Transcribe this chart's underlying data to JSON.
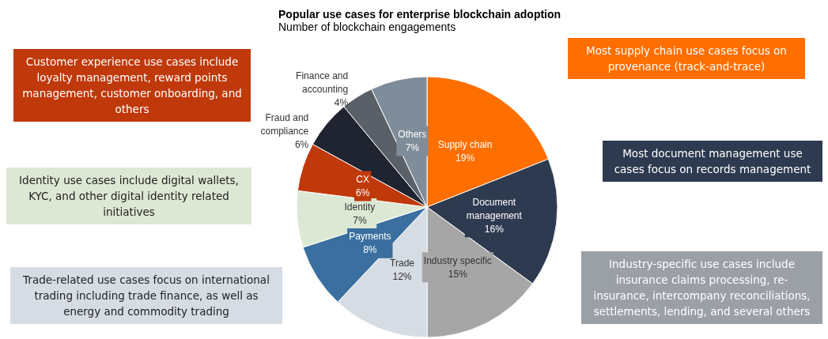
{
  "chart_data": {
    "type": "pie",
    "title": "Popular use cases for enterprise blockchain adoption",
    "subtitle": "Number of blockchain engagements",
    "categories": [
      "Supply chain",
      "Document management",
      "Industry specific",
      "Trade",
      "Payments",
      "Identity",
      "CX",
      "Fraud and compliance",
      "Finance and accounting",
      "Others"
    ],
    "values": [
      19,
      16,
      15,
      12,
      8,
      7,
      6,
      6,
      4,
      7
    ],
    "colors": [
      "#ff6f00",
      "#2e3a4f",
      "#a6a6a6",
      "#d6dce4",
      "#3a6f9f",
      "#dde8d4",
      "#c0390b",
      "#1f2430",
      "#5a6068",
      "#7f8c99"
    ],
    "value_labels": [
      "19%",
      "16%",
      "15%",
      "12%",
      "8%",
      "7%",
      "6%",
      "6%",
      "4%",
      "7%"
    ],
    "legend": false,
    "annotations": [
      "Customer experience use cases include loyalty management, reward points management, customer onboarding, and others",
      "Most supply chain use cases focus on provenance (track-and-trace)",
      "Identity use cases include digital wallets, KYC, and other digital identity related initiatives",
      "Most document management use cases focus on records management",
      "Industry-specific use cases include insurance claims processing, re-insurance, intercompany reconciliations, settlements, lending, and several others",
      "Trade-related use cases focus on international trading including trade finance, as well as energy and commodity trading"
    ]
  }
}
